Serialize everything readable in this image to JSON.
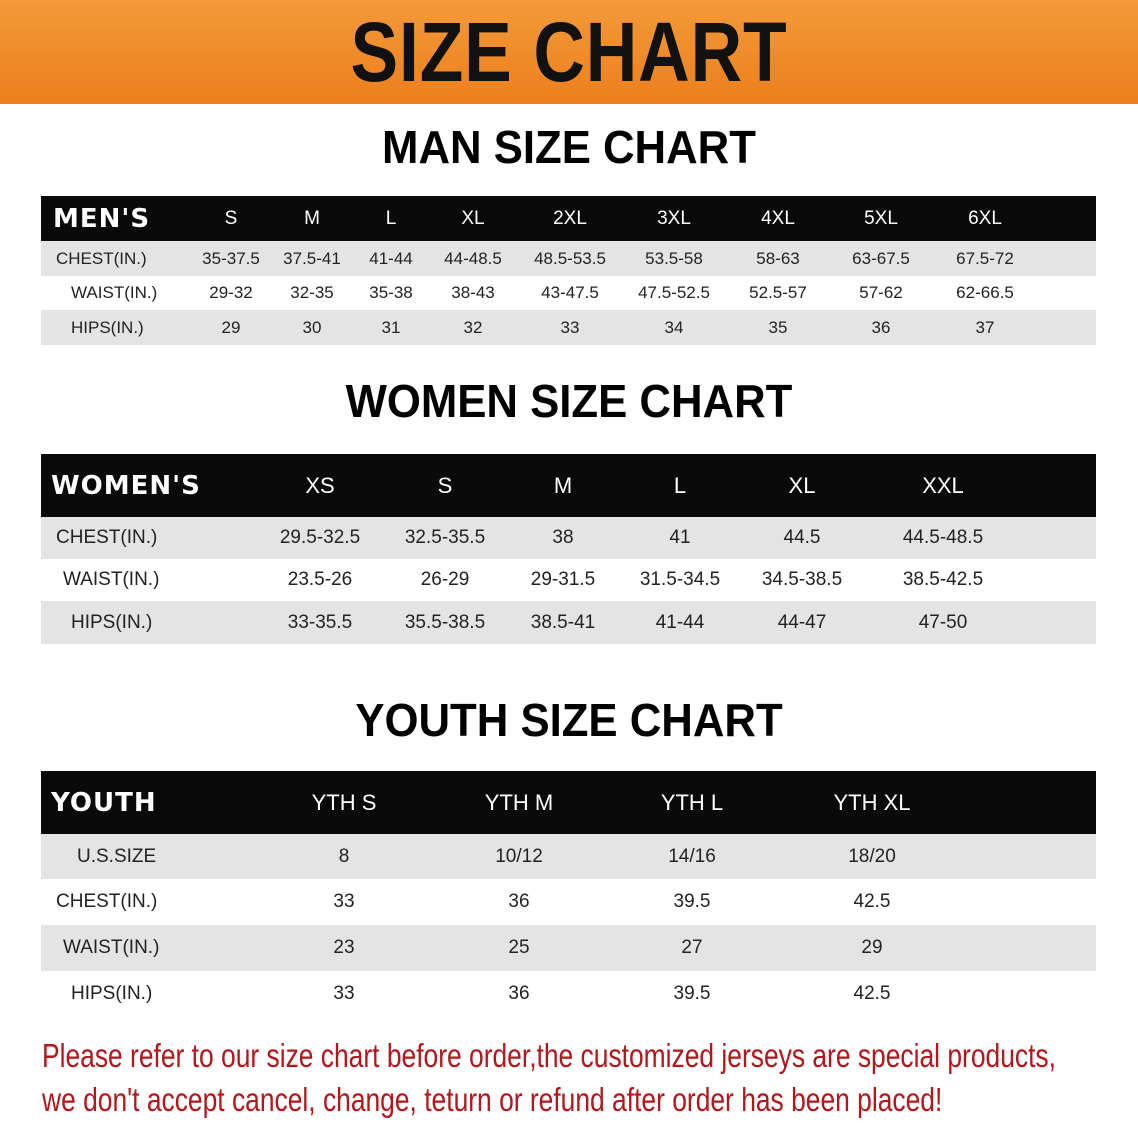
{
  "banner_title": "SIZE CHART",
  "men": {
    "title": "MAN SIZE CHART",
    "header": [
      "MEN'S",
      "S",
      "M",
      "L",
      "XL",
      "2XL",
      "3XL",
      "4XL",
      "5XL",
      "6XL"
    ],
    "rows": [
      [
        "CHEST(IN.)",
        "35-37.5",
        "37.5-41",
        "41-44",
        "44-48.5",
        "48.5-53.5",
        "53.5-58",
        "58-63",
        "63-67.5",
        "67.5-72"
      ],
      [
        "WAIST(IN.)",
        "29-32",
        "32-35",
        "35-38",
        "38-43",
        "43-47.5",
        "47.5-52.5",
        "52.5-57",
        "57-62",
        "62-66.5"
      ],
      [
        "HIPS(IN.)",
        "29",
        "30",
        "31",
        "32",
        "33",
        "34",
        "35",
        "36",
        "37"
      ]
    ]
  },
  "women": {
    "title": "WOMEN SIZE CHART",
    "header": [
      "WOMEN'S",
      "XS",
      "S",
      "M",
      "L",
      "XL",
      "XXL"
    ],
    "rows": [
      [
        "CHEST(IN.)",
        "29.5-32.5",
        "32.5-35.5",
        "38",
        "41",
        "44.5",
        "44.5-48.5"
      ],
      [
        "WAIST(IN.)",
        "23.5-26",
        "26-29",
        "29-31.5",
        "31.5-34.5",
        "34.5-38.5",
        "38.5-42.5"
      ],
      [
        "HIPS(IN.)",
        "33-35.5",
        "35.5-38.5",
        "38.5-41",
        "41-44",
        "44-47",
        "47-50"
      ]
    ]
  },
  "youth": {
    "title": "YOUTH SIZE CHART",
    "header": [
      "YOUTH",
      "YTH S",
      "YTH M",
      "YTH L",
      "YTH XL"
    ],
    "rows": [
      [
        "U.S.SIZE",
        "8",
        "10/12",
        "14/16",
        "18/20"
      ],
      [
        "CHEST(IN.)",
        "33",
        "36",
        "39.5",
        "42.5"
      ],
      [
        "WAIST(IN.)",
        "23",
        "25",
        "27",
        "29"
      ],
      [
        "HIPS(IN.)",
        "33",
        "36",
        "39.5",
        "42.5"
      ]
    ]
  },
  "notice": [
    "Please refer to our size chart before order,the customized jerseys are special products,",
    "we don't accept cancel, change, teturn or refund after order has been placed!"
  ],
  "colors": {
    "banner": "#ec7f1c",
    "header_row": "#0a0a0a",
    "stripe": "#e4e4e4",
    "notice": "#b3161b"
  }
}
